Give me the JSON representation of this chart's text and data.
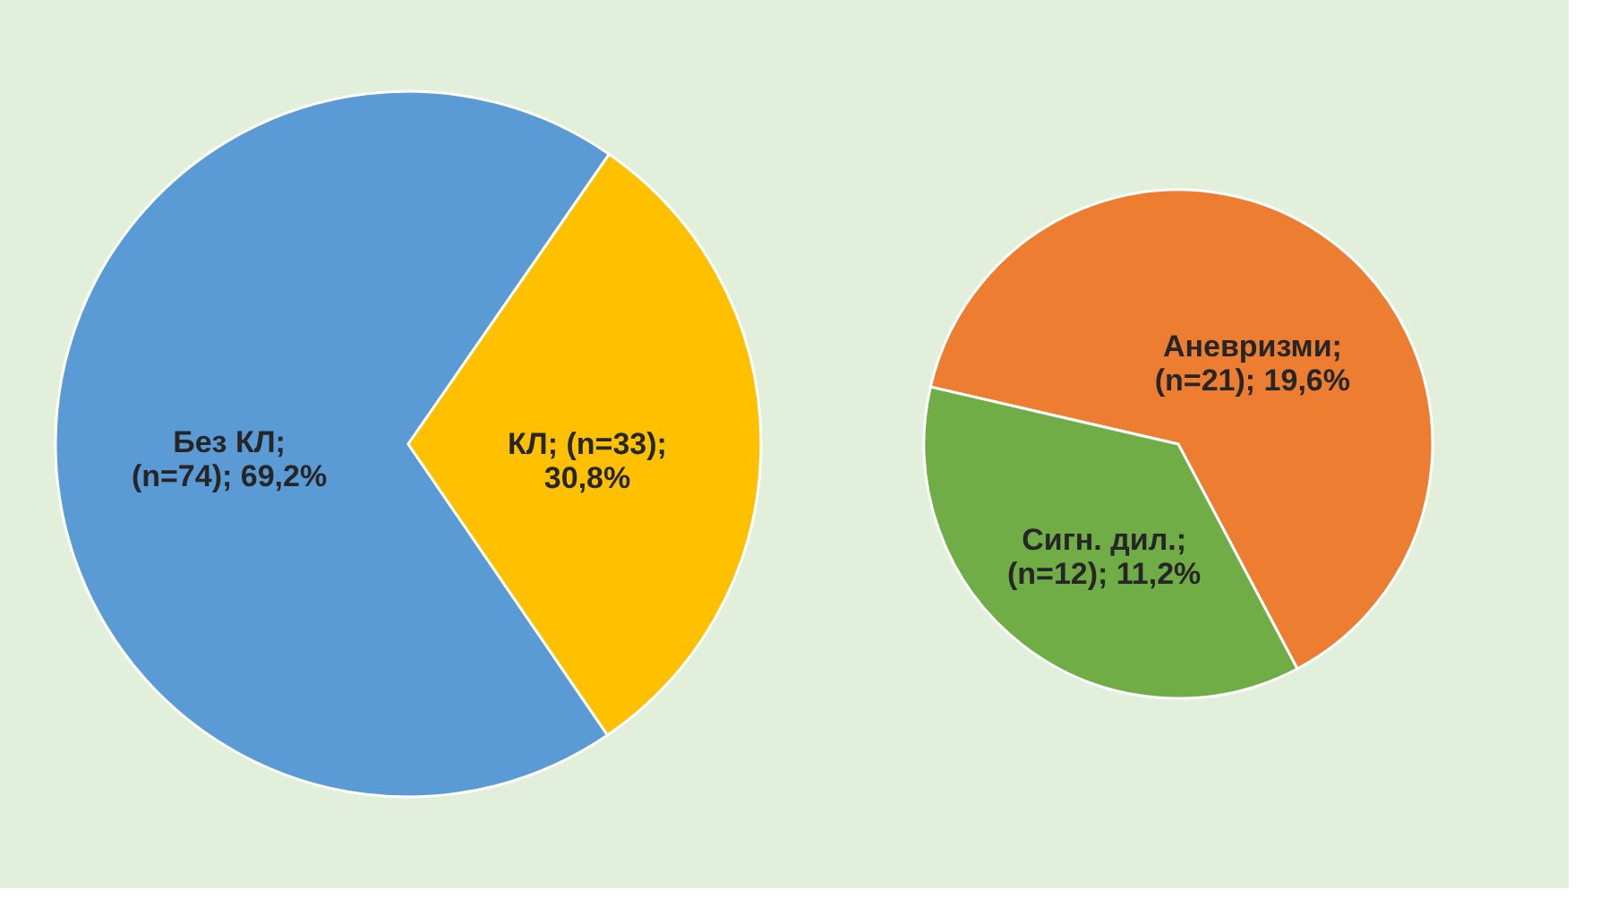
{
  "chart_data": [
    {
      "type": "pie",
      "categories": [
        "Без КЛ",
        "КЛ"
      ],
      "values": [
        69.2,
        30.8
      ],
      "colors": [
        "#5b9bd5",
        "#ffc000"
      ],
      "value_labels": [
        "; (n=74); 69,2%",
        "; (n=33); 30,8%"
      ]
    },
    {
      "type": "pie",
      "categories": [
        "Аневризми",
        "Сигн. дил."
      ],
      "values": [
        19.6,
        11.2
      ],
      "colors": [
        "#ed7d31",
        "#70ad47"
      ],
      "value_labels": [
        "; (n=21); 19,6%",
        "; (n=12); 11,2%"
      ]
    }
  ]
}
